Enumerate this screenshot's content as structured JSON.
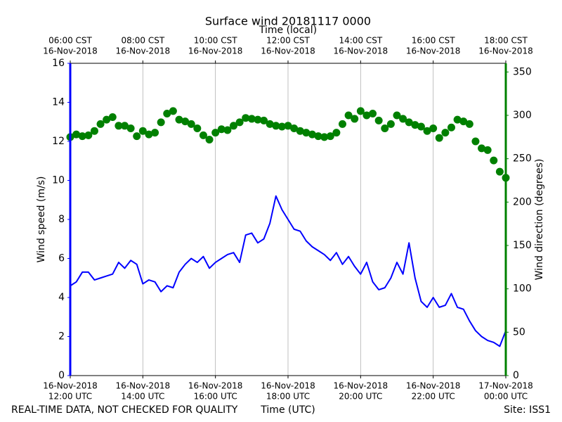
{
  "chart_data": {
    "type": "line",
    "title": "Surface wind 20181117 0000",
    "xlabel": "Time (UTC)",
    "x2label": "Time (local)",
    "ylabel": "Wind speed (m/s)",
    "y2label": "Wind direction (degrees)",
    "footer_left": "REAL-TIME DATA, NOT CHECKED FOR QUALITY",
    "footer_right": "Site: ISS1",
    "grid": true,
    "x": [
      "2018-11-16 12:00",
      "2018-11-16 12:10",
      "2018-11-16 12:20",
      "2018-11-16 12:30",
      "2018-11-16 12:40",
      "2018-11-16 12:50",
      "2018-11-16 13:00",
      "2018-11-16 13:10",
      "2018-11-16 13:20",
      "2018-11-16 13:30",
      "2018-11-16 13:40",
      "2018-11-16 13:50",
      "2018-11-16 14:00",
      "2018-11-16 14:10",
      "2018-11-16 14:20",
      "2018-11-16 14:30",
      "2018-11-16 14:40",
      "2018-11-16 14:50",
      "2018-11-16 15:00",
      "2018-11-16 15:10",
      "2018-11-16 15:20",
      "2018-11-16 15:30",
      "2018-11-16 15:40",
      "2018-11-16 15:50",
      "2018-11-16 16:00",
      "2018-11-16 16:10",
      "2018-11-16 16:20",
      "2018-11-16 16:30",
      "2018-11-16 16:40",
      "2018-11-16 16:50",
      "2018-11-16 17:00",
      "2018-11-16 17:10",
      "2018-11-16 17:20",
      "2018-11-16 17:30",
      "2018-11-16 17:40",
      "2018-11-16 17:50",
      "2018-11-16 18:00",
      "2018-11-16 18:10",
      "2018-11-16 18:20",
      "2018-11-16 18:30",
      "2018-11-16 18:40",
      "2018-11-16 18:50",
      "2018-11-16 19:00",
      "2018-11-16 19:10",
      "2018-11-16 19:20",
      "2018-11-16 19:30",
      "2018-11-16 19:40",
      "2018-11-16 19:50",
      "2018-11-16 20:00",
      "2018-11-16 20:10",
      "2018-11-16 20:20",
      "2018-11-16 20:30",
      "2018-11-16 20:40",
      "2018-11-16 20:50",
      "2018-11-16 21:00",
      "2018-11-16 21:10",
      "2018-11-16 21:20",
      "2018-11-16 21:30",
      "2018-11-16 21:40",
      "2018-11-16 21:50",
      "2018-11-16 22:00",
      "2018-11-16 22:10",
      "2018-11-16 22:20",
      "2018-11-16 22:30",
      "2018-11-16 22:40",
      "2018-11-16 22:50",
      "2018-11-16 23:00",
      "2018-11-16 23:10",
      "2018-11-16 23:20",
      "2018-11-16 23:30",
      "2018-11-16 23:40",
      "2018-11-16 23:50",
      "2018-11-17 00:00"
    ],
    "xlim": [
      "2018-11-16 12:00",
      "2018-11-17 00:00"
    ],
    "xticks": [
      {
        "value": "2018-11-16 12:00",
        "label": [
          "16-Nov-2018",
          "12:00 UTC"
        ]
      },
      {
        "value": "2018-11-16 14:00",
        "label": [
          "16-Nov-2018",
          "14:00 UTC"
        ]
      },
      {
        "value": "2018-11-16 16:00",
        "label": [
          "16-Nov-2018",
          "16:00 UTC"
        ]
      },
      {
        "value": "2018-11-16 18:00",
        "label": [
          "16-Nov-2018",
          "18:00 UTC"
        ]
      },
      {
        "value": "2018-11-16 20:00",
        "label": [
          "16-Nov-2018",
          "20:00 UTC"
        ]
      },
      {
        "value": "2018-11-16 22:00",
        "label": [
          "16-Nov-2018",
          "22:00 UTC"
        ]
      },
      {
        "value": "2018-11-17 00:00",
        "label": [
          "17-Nov-2018",
          "00:00 UTC"
        ]
      }
    ],
    "x2lim": [
      "2018-11-16 06:00",
      "2018-11-16 18:00"
    ],
    "x2ticks": [
      {
        "value": "2018-11-16 06:00",
        "label": [
          "06:00 CST",
          "16-Nov-2018"
        ]
      },
      {
        "value": "2018-11-16 08:00",
        "label": [
          "08:00 CST",
          "16-Nov-2018"
        ]
      },
      {
        "value": "2018-11-16 10:00",
        "label": [
          "10:00 CST",
          "16-Nov-2018"
        ]
      },
      {
        "value": "2018-11-16 12:00",
        "label": [
          "12:00 CST",
          "16-Nov-2018"
        ]
      },
      {
        "value": "2018-11-16 14:00",
        "label": [
          "14:00 CST",
          "16-Nov-2018"
        ]
      },
      {
        "value": "2018-11-16 16:00",
        "label": [
          "16:00 CST",
          "16-Nov-2018"
        ]
      },
      {
        "value": "2018-11-16 18:00",
        "label": [
          "18:00 CST",
          "16-Nov-2018"
        ]
      }
    ],
    "ylim": [
      0,
      16
    ],
    "yticks": [
      0,
      2,
      4,
      6,
      8,
      10,
      12,
      14,
      16
    ],
    "y2lim": [
      0,
      360
    ],
    "y2ticks": [
      0,
      50,
      100,
      150,
      200,
      250,
      300,
      350
    ],
    "ycolor": "#0000ff",
    "y2color": "#008000",
    "series": [
      {
        "color": "#0000ff",
        "style": "line",
        "axis": "y",
        "values": [
          4.6,
          4.8,
          5.3,
          5.3,
          4.9,
          5.0,
          5.1,
          5.2,
          5.8,
          5.5,
          5.9,
          5.7,
          4.7,
          4.9,
          4.8,
          4.3,
          4.6,
          4.5,
          5.3,
          5.7,
          6.0,
          5.8,
          6.1,
          5.5,
          5.8,
          6.0,
          6.2,
          6.3,
          5.8,
          7.2,
          7.3,
          6.8,
          7.0,
          7.8,
          9.2,
          8.5,
          8.0,
          7.5,
          7.4,
          6.9,
          6.6,
          6.4,
          6.2,
          5.9,
          6.3,
          5.7,
          6.1,
          5.6,
          5.2,
          5.8,
          4.8,
          4.4,
          4.5,
          5.0,
          5.8,
          5.2,
          6.8,
          5.0,
          3.8,
          3.5,
          4.0,
          3.5,
          3.6,
          4.2,
          3.5,
          3.4,
          2.8,
          2.3,
          2.0,
          1.8,
          1.7,
          1.5,
          2.3
        ]
      },
      {
        "color": "#008000",
        "style": "marker",
        "axis": "y2",
        "values": [
          275,
          278,
          276,
          277,
          282,
          290,
          295,
          298,
          288,
          288,
          285,
          276,
          282,
          278,
          280,
          292,
          302,
          305,
          295,
          293,
          290,
          285,
          277,
          272,
          280,
          284,
          283,
          288,
          292,
          297,
          296,
          295,
          294,
          290,
          288,
          287,
          288,
          285,
          282,
          280,
          278,
          276,
          275,
          276,
          280,
          290,
          300,
          296,
          305,
          300,
          302,
          294,
          285,
          290,
          300,
          296,
          292,
          289,
          287,
          282,
          285,
          274,
          280,
          286,
          295,
          293,
          290,
          270,
          262,
          260,
          248,
          235,
          228
        ]
      }
    ]
  }
}
